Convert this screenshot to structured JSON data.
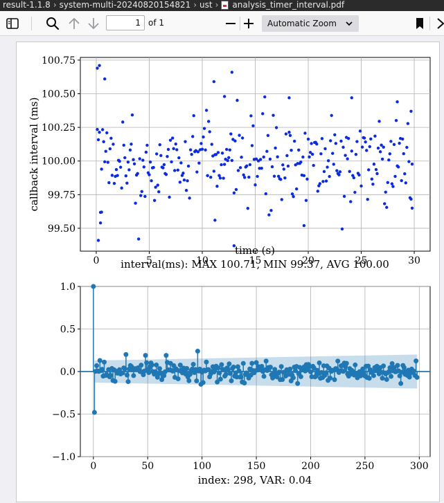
{
  "breadcrumb": {
    "items": [
      "result-1.1.8",
      "system-multi-20240820154821",
      "ust",
      "analysis_timer_interval.pdf"
    ]
  },
  "toolbar": {
    "page_number": "1",
    "page_count": "of 1",
    "zoom_label": "Automatic Zoom",
    "icons": [
      "sidebar-toggle-icon",
      "search-icon",
      "arrow-up-icon",
      "arrow-down-icon",
      "minus-icon",
      "plus-icon",
      "chevron-down-icon",
      "bookmark-icon",
      "tools-icon"
    ]
  },
  "chart_data": [
    {
      "type": "scatter",
      "xlabel": "time (s)",
      "ylabel": "callback interval (ms)",
      "caption": "interval(ms): MAX 100.71, MIN 99.37, AVG 100.00",
      "xlim": [
        -1.5,
        31.5
      ],
      "ylim": [
        99.33,
        100.77
      ],
      "xticks": [
        "0",
        "5",
        "10",
        "15",
        "20",
        "25",
        "30"
      ],
      "xtick_values": [
        0,
        5,
        10,
        15,
        20,
        25,
        30
      ],
      "yticks": [
        "99.50",
        "99.75",
        "100.00",
        "100.25",
        "100.50",
        "100.75"
      ],
      "ytick_values": [
        99.5,
        99.75,
        100.0,
        100.25,
        100.5,
        100.75
      ],
      "grid": true,
      "color": "#0a2be0",
      "n_points": 298,
      "x_range": [
        0.1,
        29.8
      ],
      "stats": {
        "max": 100.71,
        "min": 99.37,
        "avg": 100.0
      },
      "highlight_points": [
        {
          "x": 0.1,
          "y": 100.69
        },
        {
          "x": 0.2,
          "y": 99.41
        },
        {
          "x": 0.3,
          "y": 100.71
        },
        {
          "x": 0.4,
          "y": 99.54
        },
        {
          "x": 0.5,
          "y": 99.62
        },
        {
          "x": 0.8,
          "y": 100.61
        },
        {
          "x": 11.1,
          "y": 100.59
        },
        {
          "x": 11.2,
          "y": 99.56
        },
        {
          "x": 12.1,
          "y": 100.48
        },
        {
          "x": 12.8,
          "y": 100.66
        },
        {
          "x": 13.0,
          "y": 99.37
        },
        {
          "x": 19.6,
          "y": 99.52
        },
        {
          "x": 18.2,
          "y": 100.47
        },
        {
          "x": 24.1,
          "y": 100.47
        },
        {
          "x": 28.4,
          "y": 100.44
        },
        {
          "x": 29.8,
          "y": 99.65
        },
        {
          "x": 29.7,
          "y": 100.37
        }
      ]
    },
    {
      "type": "stem",
      "caption": "index: 298, VAR: 0.04",
      "xlim": [
        -12,
        310
      ],
      "ylim": [
        -1.0,
        1.0
      ],
      "xticks": [
        "0",
        "50",
        "100",
        "150",
        "200",
        "250",
        "300"
      ],
      "xtick_values": [
        0,
        50,
        100,
        150,
        200,
        250,
        300
      ],
      "yticks": [
        "−1.0",
        "−0.5",
        "0.0",
        "0.5",
        "1.0"
      ],
      "ytick_values": [
        -1.0,
        -0.5,
        0.0,
        0.5,
        1.0
      ],
      "grid": true,
      "color": "#1f77b4",
      "band_color": "#1f77b4",
      "n_lags": 298,
      "lag0": 1.0,
      "lag1": -0.48,
      "confidence_band": {
        "start": 0.13,
        "end": 0.2
      },
      "notable_lags": [
        {
          "lag": 30,
          "value": 0.2
        },
        {
          "lag": 48,
          "value": 0.19
        },
        {
          "lag": 67,
          "value": 0.19
        },
        {
          "lag": 96,
          "value": 0.24
        },
        {
          "lag": 99,
          "value": -0.15
        },
        {
          "lag": 6,
          "value": 0.13
        }
      ]
    }
  ]
}
